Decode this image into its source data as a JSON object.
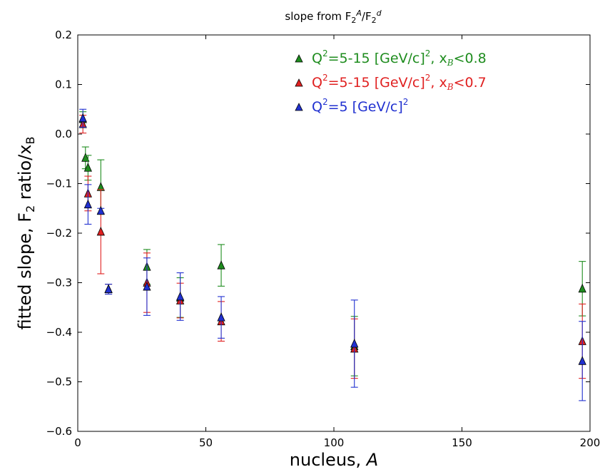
{
  "chart_data": {
    "type": "scatter",
    "title": {
      "base": "slope from F",
      "sub1": "2",
      "sup1": "A",
      "slash": "/F",
      "sub2": "2",
      "sup2": "d"
    },
    "xlabel": {
      "text": "nucleus, ",
      "italic": "A"
    },
    "ylabel": {
      "text1": "fitted slope, F",
      "sub": "2",
      "text2": " ratio/x",
      "sub2": "B"
    },
    "xlim": [
      0,
      200
    ],
    "ylim": [
      -0.6,
      0.2
    ],
    "xticks": [
      0,
      50,
      100,
      150,
      200
    ],
    "yticks": [
      -0.6,
      -0.5,
      -0.4,
      -0.3,
      -0.2,
      -0.1,
      0.0,
      0.1,
      0.2
    ],
    "xtick_labels": [
      "0",
      "50",
      "100",
      "150",
      "200"
    ],
    "ytick_labels": [
      "−0.6",
      "−0.5",
      "−0.4",
      "−0.3",
      "−0.2",
      "−0.1",
      "0.0",
      "0.1",
      "0.2"
    ],
    "grid": false,
    "legend_position": "top-right",
    "series": [
      {
        "legend": {
          "q": "Q",
          "sup": "2",
          "mid": "=5-15 [GeV/c]",
          "sup2": "2",
          "tail": ", x",
          "sub": "B",
          "end": "<0.8"
        },
        "color": "#1e8c1e",
        "points": [
          {
            "x": 2,
            "y": 0.03,
            "err": 0.015
          },
          {
            "x": 3,
            "y": -0.048,
            "err": 0.022
          },
          {
            "x": 4,
            "y": -0.068,
            "err": 0.025
          },
          {
            "x": 9,
            "y": -0.107,
            "err": 0.055
          },
          {
            "x": 12,
            "y": -0.313,
            "err": 0.01
          },
          {
            "x": 27,
            "y": -0.268,
            "err": 0.035
          },
          {
            "x": 40,
            "y": -0.33,
            "err": 0.04
          },
          {
            "x": 56,
            "y": -0.265,
            "err": 0.042
          },
          {
            "x": 108,
            "y": -0.428,
            "err": 0.06
          },
          {
            "x": 197,
            "y": -0.312,
            "err": 0.055
          }
        ]
      },
      {
        "legend": {
          "q": "Q",
          "sup": "2",
          "mid": "=5-15 [GeV/c]",
          "sup2": "2",
          "tail": ", x",
          "sub": "B",
          "end": "<0.7"
        },
        "color": "#e02020",
        "points": [
          {
            "x": 2,
            "y": 0.02,
            "err": 0.018
          },
          {
            "x": 4,
            "y": -0.12,
            "err": 0.035
          },
          {
            "x": 9,
            "y": -0.197,
            "err": 0.085
          },
          {
            "x": 12,
            "y": -0.313,
            "err": 0.01
          },
          {
            "x": 27,
            "y": -0.3,
            "err": 0.06
          },
          {
            "x": 40,
            "y": -0.336,
            "err": 0.035
          },
          {
            "x": 56,
            "y": -0.378,
            "err": 0.04
          },
          {
            "x": 108,
            "y": -0.433,
            "err": 0.06
          },
          {
            "x": 197,
            "y": -0.418,
            "err": 0.075
          }
        ]
      },
      {
        "legend": {
          "q": "Q",
          "sup": "2",
          "mid": "=5 [GeV/c]",
          "sup2": "2",
          "tail": "",
          "sub": "",
          "end": ""
        },
        "color": "#2030d0",
        "points": [
          {
            "x": 2,
            "y": 0.032,
            "err": 0.018
          },
          {
            "x": 4,
            "y": -0.142,
            "err": 0.04
          },
          {
            "x": 9,
            "y": -0.155,
            "err": 0.005
          },
          {
            "x": 12,
            "y": -0.313,
            "err": 0.01
          },
          {
            "x": 27,
            "y": -0.308,
            "err": 0.058
          },
          {
            "x": 40,
            "y": -0.328,
            "err": 0.048
          },
          {
            "x": 56,
            "y": -0.37,
            "err": 0.042
          },
          {
            "x": 108,
            "y": -0.423,
            "err": 0.088
          },
          {
            "x": 197,
            "y": -0.458,
            "err": 0.08
          }
        ]
      }
    ]
  }
}
